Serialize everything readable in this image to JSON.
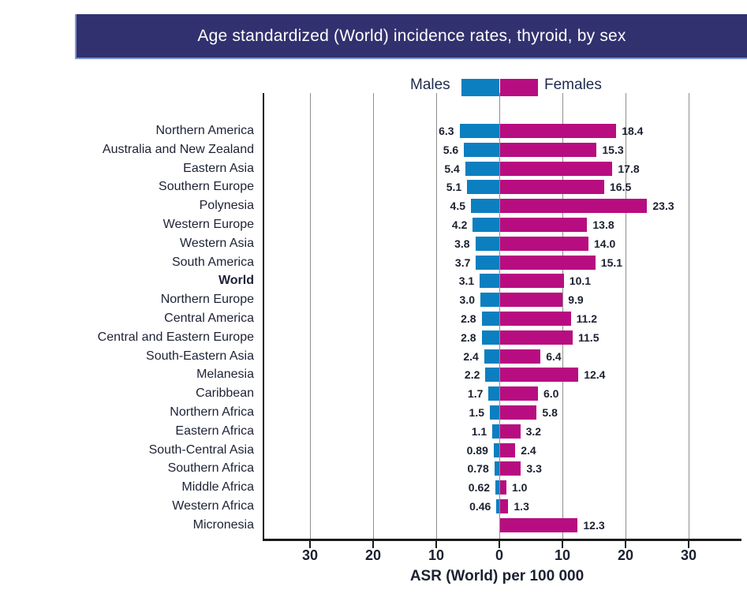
{
  "title": "Age standardized (World) incidence rates, thyroid, by sex",
  "legend": {
    "males_label": "Males",
    "females_label": "Females"
  },
  "colors": {
    "males_bar": "#0c7fc0",
    "females_bar": "#b70d80",
    "title_bar_bg": "#32316f",
    "title_text": "#ffffff",
    "gridline": "#8f8f8f",
    "axis": "#1a1a1a",
    "text": "#1e2235"
  },
  "chart_data": {
    "type": "bar",
    "orientation": "horizontal-diverging",
    "title": "Age standardized (World) incidence rates, thyroid, by sex",
    "xlabel": "ASR (World) per 100 000",
    "x_tick_values": [
      -30,
      -20,
      -10,
      0,
      10,
      20,
      30
    ],
    "x_tick_labels": [
      "30",
      "20",
      "10",
      "0",
      "10",
      "20",
      "30"
    ],
    "xlim": [
      -37.5,
      38.5
    ],
    "grid": true,
    "legend_position": "top-center",
    "series_names": [
      "Males",
      "Females"
    ],
    "rows": [
      {
        "category": "Northern America",
        "male": 6.3,
        "male_label": "6.3",
        "female": 18.4,
        "female_label": "18.4",
        "bold": false
      },
      {
        "category": "Australia and New Zealand",
        "male": 5.6,
        "male_label": "5.6",
        "female": 15.3,
        "female_label": "15.3",
        "bold": false
      },
      {
        "category": "Eastern Asia",
        "male": 5.4,
        "male_label": "5.4",
        "female": 17.8,
        "female_label": "17.8",
        "bold": false
      },
      {
        "category": "Southern Europe",
        "male": 5.1,
        "male_label": "5.1",
        "female": 16.5,
        "female_label": "16.5",
        "bold": false
      },
      {
        "category": "Polynesia",
        "male": 4.5,
        "male_label": "4.5",
        "female": 23.3,
        "female_label": "23.3",
        "bold": false
      },
      {
        "category": "Western Europe",
        "male": 4.2,
        "male_label": "4.2",
        "female": 13.8,
        "female_label": "13.8",
        "bold": false
      },
      {
        "category": "Western Asia",
        "male": 3.8,
        "male_label": "3.8",
        "female": 14.0,
        "female_label": "14.0",
        "bold": false
      },
      {
        "category": "South America",
        "male": 3.7,
        "male_label": "3.7",
        "female": 15.1,
        "female_label": "15.1",
        "bold": false
      },
      {
        "category": "World",
        "male": 3.1,
        "male_label": "3.1",
        "female": 10.1,
        "female_label": "10.1",
        "bold": true
      },
      {
        "category": "Northern Europe",
        "male": 3.0,
        "male_label": "3.0",
        "female": 9.9,
        "female_label": "9.9",
        "bold": false
      },
      {
        "category": "Central America",
        "male": 2.8,
        "male_label": "2.8",
        "female": 11.2,
        "female_label": "11.2",
        "bold": false
      },
      {
        "category": "Central and Eastern Europe",
        "male": 2.8,
        "male_label": "2.8",
        "female": 11.5,
        "female_label": "11.5",
        "bold": false
      },
      {
        "category": "South-Eastern Asia",
        "male": 2.4,
        "male_label": "2.4",
        "female": 6.4,
        "female_label": "6.4",
        "bold": false
      },
      {
        "category": "Melanesia",
        "male": 2.2,
        "male_label": "2.2",
        "female": 12.4,
        "female_label": "12.4",
        "bold": false
      },
      {
        "category": "Caribbean",
        "male": 1.7,
        "male_label": "1.7",
        "female": 6.0,
        "female_label": "6.0",
        "bold": false
      },
      {
        "category": "Northern Africa",
        "male": 1.5,
        "male_label": "1.5",
        "female": 5.8,
        "female_label": "5.8",
        "bold": false
      },
      {
        "category": "Eastern Africa",
        "male": 1.1,
        "male_label": "1.1",
        "female": 3.2,
        "female_label": "3.2",
        "bold": false
      },
      {
        "category": "South-Central Asia",
        "male": 0.89,
        "male_label": "0.89",
        "female": 2.4,
        "female_label": "2.4",
        "bold": false
      },
      {
        "category": "Southern Africa",
        "male": 0.78,
        "male_label": "0.78",
        "female": 3.3,
        "female_label": "3.3",
        "bold": false
      },
      {
        "category": "Middle Africa",
        "male": 0.62,
        "male_label": "0.62",
        "female": 1.0,
        "female_label": "1.0",
        "bold": false
      },
      {
        "category": "Western Africa",
        "male": 0.46,
        "male_label": "0.46",
        "female": 1.3,
        "female_label": "1.3",
        "bold": false
      },
      {
        "category": "Micronesia",
        "male": null,
        "male_label": "",
        "female": 12.3,
        "female_label": "12.3",
        "bold": false
      }
    ]
  }
}
